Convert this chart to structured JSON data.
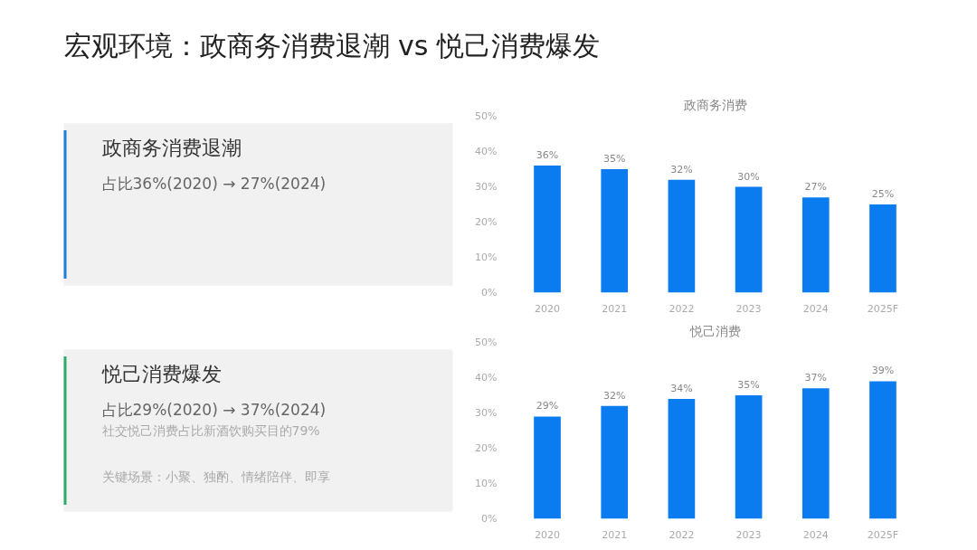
{
  "chart_data": [
    {
      "type": "other",
      "title": "宏观环境：政商务消费退潮 vs 悦己消费爆发"
    },
    {
      "type": "other",
      "title": "政商务消费退潮",
      "annotations": [
        "占比36%(2020) → 27%(2024)"
      ]
    },
    {
      "type": "bar",
      "title": "政商务消费",
      "categories": [
        "2020",
        "2021",
        "2022",
        "2023",
        "2024",
        "2025F"
      ],
      "values": [
        36,
        35,
        32,
        30,
        27,
        25
      ],
      "value_labels": [
        "36%",
        "35%",
        "32%",
        "30%",
        "27%",
        "25%"
      ],
      "color": "#0a7cf0",
      "ylim": [
        0,
        50
      ],
      "yticks": [
        {
          "value": 0,
          "label": "0%"
        },
        {
          "value": 10,
          "label": "10%"
        },
        {
          "value": 20,
          "label": "20%"
        },
        {
          "value": 30,
          "label": "30%"
        },
        {
          "value": 40,
          "label": "40%"
        },
        {
          "value": 50,
          "label": "50%"
        }
      ],
      "grid": false
    },
    {
      "type": "other",
      "title": "悦己消费爆发",
      "annotations": [
        "占比29%(2020) → 37%(2024)",
        "社交悦己消费占比新酒饮购买目的79%",
        "关键场景：小聚、独酌、情绪陪伴、即享"
      ]
    },
    {
      "type": "bar",
      "title": "悦己消费",
      "categories": [
        "2020",
        "2021",
        "2022",
        "2023",
        "2024",
        "2025F"
      ],
      "values": [
        29,
        32,
        34,
        35,
        37,
        39
      ],
      "value_labels": [
        "29%",
        "32%",
        "34%",
        "35%",
        "37%",
        "39%"
      ],
      "color": "#0a7cf0",
      "ylim": [
        0,
        50
      ],
      "yticks": [
        {
          "value": 0,
          "label": "0%"
        },
        {
          "value": 10,
          "label": "10%"
        },
        {
          "value": 20,
          "label": "20%"
        },
        {
          "value": 30,
          "label": "30%"
        },
        {
          "value": 40,
          "label": "40%"
        },
        {
          "value": 50,
          "label": "50%"
        }
      ],
      "grid": false
    }
  ]
}
